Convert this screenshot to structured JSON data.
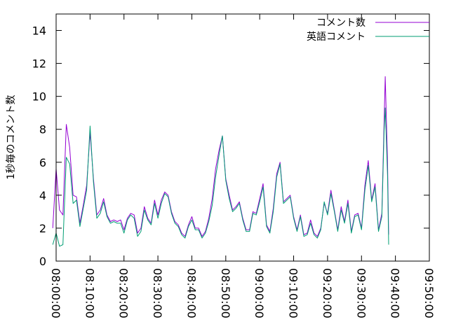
{
  "chart_data": {
    "type": "line",
    "ylabel": "1秒毎のコメント数",
    "xlabel": "",
    "ylim": [
      0,
      15
    ],
    "y_ticks": [
      0,
      2,
      4,
      6,
      8,
      10,
      12,
      14
    ],
    "x_ticks": [
      "08:00:00",
      "08:10:00",
      "08:20:00",
      "08:30:00",
      "08:40:00",
      "08:50:00",
      "09:00:00",
      "09:10:00",
      "09:20:00",
      "09:30:00",
      "09:40:00",
      "09:50:00"
    ],
    "xlim": [
      "08:00:00",
      "09:50:00"
    ],
    "legend_position": "top-right",
    "grid": false,
    "series": [
      {
        "name": "コメント数",
        "color": "#9400d3",
        "points": [
          [
            "07:59:00",
            2.0
          ],
          [
            "08:00:00",
            5.6
          ],
          [
            "08:01:00",
            3.1
          ],
          [
            "08:02:00",
            2.8
          ],
          [
            "08:03:00",
            8.3
          ],
          [
            "08:04:00",
            6.9
          ],
          [
            "08:05:00",
            4.0
          ],
          [
            "08:06:00",
            3.9
          ],
          [
            "08:07:00",
            2.3
          ],
          [
            "08:08:00",
            3.4
          ],
          [
            "08:09:00",
            4.6
          ],
          [
            "08:10:00",
            7.8
          ],
          [
            "08:11:00",
            5.0
          ],
          [
            "08:12:00",
            2.8
          ],
          [
            "08:13:00",
            3.1
          ],
          [
            "08:14:00",
            3.8
          ],
          [
            "08:15:00",
            2.8
          ],
          [
            "08:16:00",
            2.4
          ],
          [
            "08:17:00",
            2.5
          ],
          [
            "08:18:00",
            2.4
          ],
          [
            "08:19:00",
            2.5
          ],
          [
            "08:20:00",
            1.9
          ],
          [
            "08:21:00",
            2.6
          ],
          [
            "08:22:00",
            2.9
          ],
          [
            "08:23:00",
            2.8
          ],
          [
            "08:24:00",
            1.7
          ],
          [
            "08:25:00",
            2.0
          ],
          [
            "08:26:00",
            3.3
          ],
          [
            "08:27:00",
            2.6
          ],
          [
            "08:28:00",
            2.3
          ],
          [
            "08:29:00",
            3.7
          ],
          [
            "08:30:00",
            2.8
          ],
          [
            "08:31:00",
            3.7
          ],
          [
            "08:32:00",
            4.2
          ],
          [
            "08:33:00",
            4.0
          ],
          [
            "08:34:00",
            3.0
          ],
          [
            "08:35:00",
            2.4
          ],
          [
            "08:36:00",
            2.2
          ],
          [
            "08:37:00",
            1.7
          ],
          [
            "08:38:00",
            1.5
          ],
          [
            "08:39:00",
            2.2
          ],
          [
            "08:40:00",
            2.7
          ],
          [
            "08:41:00",
            2.0
          ],
          [
            "08:42:00",
            2.0
          ],
          [
            "08:43:00",
            1.5
          ],
          [
            "08:44:00",
            1.8
          ],
          [
            "08:45:00",
            2.6
          ],
          [
            "08:46:00",
            3.8
          ],
          [
            "08:47:00",
            5.6
          ],
          [
            "08:48:00",
            6.7
          ],
          [
            "08:49:00",
            7.6
          ],
          [
            "08:50:00",
            5.0
          ],
          [
            "08:51:00",
            4.0
          ],
          [
            "08:52:00",
            3.1
          ],
          [
            "08:53:00",
            3.3
          ],
          [
            "08:54:00",
            3.6
          ],
          [
            "08:55:00",
            2.6
          ],
          [
            "08:56:00",
            1.9
          ],
          [
            "08:57:00",
            1.9
          ],
          [
            "08:58:00",
            3.0
          ],
          [
            "08:59:00",
            2.9
          ],
          [
            "09:00:00",
            3.8
          ],
          [
            "09:01:00",
            4.7
          ],
          [
            "09:02:00",
            2.2
          ],
          [
            "09:03:00",
            1.8
          ],
          [
            "09:04:00",
            3.2
          ],
          [
            "09:05:00",
            5.3
          ],
          [
            "09:06:00",
            6.0
          ],
          [
            "09:07:00",
            3.6
          ],
          [
            "09:08:00",
            3.8
          ],
          [
            "09:09:00",
            4.0
          ],
          [
            "09:10:00",
            2.7
          ],
          [
            "09:11:00",
            1.9
          ],
          [
            "09:12:00",
            2.8
          ],
          [
            "09:13:00",
            1.6
          ],
          [
            "09:14:00",
            1.7
          ],
          [
            "09:15:00",
            2.5
          ],
          [
            "09:16:00",
            1.7
          ],
          [
            "09:17:00",
            1.5
          ],
          [
            "09:18:00",
            2.0
          ],
          [
            "09:19:00",
            3.5
          ],
          [
            "09:20:00",
            2.9
          ],
          [
            "09:21:00",
            4.3
          ],
          [
            "09:22:00",
            3.1
          ],
          [
            "09:23:00",
            1.9
          ],
          [
            "09:24:00",
            3.3
          ],
          [
            "09:25:00",
            2.4
          ],
          [
            "09:26:00",
            3.7
          ],
          [
            "09:27:00",
            1.8
          ],
          [
            "09:28:00",
            2.8
          ],
          [
            "09:29:00",
            2.9
          ],
          [
            "09:30:00",
            2.0
          ],
          [
            "09:31:00",
            4.6
          ],
          [
            "09:32:00",
            6.1
          ],
          [
            "09:33:00",
            3.7
          ],
          [
            "09:34:00",
            4.7
          ],
          [
            "09:35:00",
            1.9
          ],
          [
            "09:36:00",
            2.9
          ],
          [
            "09:36:40",
            8.5
          ],
          [
            "09:37:00",
            11.2
          ],
          [
            "09:37:40",
            6.0
          ],
          [
            "09:38:00",
            1.6
          ]
        ]
      },
      {
        "name": "英語コメント",
        "color": "#009e73",
        "points": [
          [
            "07:59:00",
            1.0
          ],
          [
            "08:00:00",
            1.7
          ],
          [
            "08:01:00",
            0.9
          ],
          [
            "08:02:00",
            1.0
          ],
          [
            "08:03:00",
            6.3
          ],
          [
            "08:04:00",
            5.9
          ],
          [
            "08:05:00",
            3.5
          ],
          [
            "08:06:00",
            3.7
          ],
          [
            "08:07:00",
            2.1
          ],
          [
            "08:08:00",
            3.2
          ],
          [
            "08:09:00",
            4.3
          ],
          [
            "08:10:00",
            8.2
          ],
          [
            "08:11:00",
            4.8
          ],
          [
            "08:12:00",
            2.6
          ],
          [
            "08:13:00",
            2.9
          ],
          [
            "08:14:00",
            3.6
          ],
          [
            "08:15:00",
            2.7
          ],
          [
            "08:16:00",
            2.3
          ],
          [
            "08:17:00",
            2.4
          ],
          [
            "08:18:00",
            2.3
          ],
          [
            "08:19:00",
            2.3
          ],
          [
            "08:20:00",
            1.7
          ],
          [
            "08:21:00",
            2.5
          ],
          [
            "08:22:00",
            2.8
          ],
          [
            "08:23:00",
            2.6
          ],
          [
            "08:24:00",
            1.5
          ],
          [
            "08:25:00",
            1.8
          ],
          [
            "08:26:00",
            3.1
          ],
          [
            "08:27:00",
            2.5
          ],
          [
            "08:28:00",
            2.2
          ],
          [
            "08:29:00",
            3.5
          ],
          [
            "08:30:00",
            2.6
          ],
          [
            "08:31:00",
            3.5
          ],
          [
            "08:32:00",
            4.1
          ],
          [
            "08:33:00",
            3.9
          ],
          [
            "08:34:00",
            2.9
          ],
          [
            "08:35:00",
            2.3
          ],
          [
            "08:36:00",
            2.1
          ],
          [
            "08:37:00",
            1.6
          ],
          [
            "08:38:00",
            1.4
          ],
          [
            "08:39:00",
            2.1
          ],
          [
            "08:40:00",
            2.5
          ],
          [
            "08:41:00",
            1.9
          ],
          [
            "08:42:00",
            1.9
          ],
          [
            "08:43:00",
            1.4
          ],
          [
            "08:44:00",
            1.7
          ],
          [
            "08:45:00",
            2.4
          ],
          [
            "08:46:00",
            3.4
          ],
          [
            "08:47:00",
            5.1
          ],
          [
            "08:48:00",
            6.4
          ],
          [
            "08:49:00",
            7.6
          ],
          [
            "08:50:00",
            4.9
          ],
          [
            "08:51:00",
            3.8
          ],
          [
            "08:52:00",
            3.0
          ],
          [
            "08:53:00",
            3.2
          ],
          [
            "08:54:00",
            3.5
          ],
          [
            "08:55:00",
            2.5
          ],
          [
            "08:56:00",
            1.8
          ],
          [
            "08:57:00",
            1.8
          ],
          [
            "08:58:00",
            2.9
          ],
          [
            "08:59:00",
            2.8
          ],
          [
            "09:00:00",
            3.6
          ],
          [
            "09:01:00",
            4.5
          ],
          [
            "09:02:00",
            2.1
          ],
          [
            "09:03:00",
            1.7
          ],
          [
            "09:04:00",
            3.0
          ],
          [
            "09:05:00",
            5.1
          ],
          [
            "09:06:00",
            5.9
          ],
          [
            "09:07:00",
            3.5
          ],
          [
            "09:08:00",
            3.7
          ],
          [
            "09:09:00",
            3.9
          ],
          [
            "09:10:00",
            2.6
          ],
          [
            "09:11:00",
            1.8
          ],
          [
            "09:12:00",
            2.7
          ],
          [
            "09:13:00",
            1.5
          ],
          [
            "09:14:00",
            1.6
          ],
          [
            "09:15:00",
            2.3
          ],
          [
            "09:16:00",
            1.6
          ],
          [
            "09:17:00",
            1.4
          ],
          [
            "09:18:00",
            1.9
          ],
          [
            "09:19:00",
            3.6
          ],
          [
            "09:20:00",
            2.8
          ],
          [
            "09:21:00",
            4.1
          ],
          [
            "09:22:00",
            3.0
          ],
          [
            "09:23:00",
            1.8
          ],
          [
            "09:24:00",
            3.1
          ],
          [
            "09:25:00",
            2.3
          ],
          [
            "09:26:00",
            3.5
          ],
          [
            "09:27:00",
            1.7
          ],
          [
            "09:28:00",
            2.7
          ],
          [
            "09:29:00",
            2.8
          ],
          [
            "09:30:00",
            1.9
          ],
          [
            "09:31:00",
            4.3
          ],
          [
            "09:32:00",
            5.8
          ],
          [
            "09:33:00",
            3.6
          ],
          [
            "09:34:00",
            4.5
          ],
          [
            "09:35:00",
            1.8
          ],
          [
            "09:36:00",
            2.7
          ],
          [
            "09:36:40",
            7.9
          ],
          [
            "09:37:00",
            9.3
          ],
          [
            "09:37:40",
            5.2
          ],
          [
            "09:38:00",
            1.0
          ]
        ]
      }
    ]
  }
}
